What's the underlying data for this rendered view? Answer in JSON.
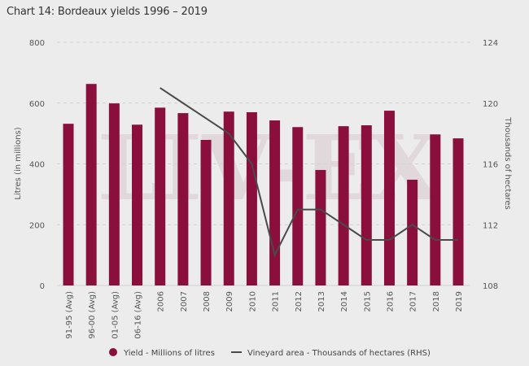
{
  "title": "Chart 14: Bordeaux yields 1996 – 2019",
  "watermark": "LIV-EX",
  "chart_data": {
    "type": "bar+line",
    "categories": [
      "91-95 (Avg)",
      "96-00 (Avg)",
      "01-05 (Avg)",
      "06-16 (Avg)",
      "2006",
      "2007",
      "2008",
      "2009",
      "2010",
      "2011",
      "2012",
      "2013",
      "2014",
      "2015",
      "2016",
      "2017",
      "2018",
      "2019"
    ],
    "series": [
      {
        "name": "Yield - Millions of litres",
        "type": "bar",
        "axis": "left",
        "color": "#8a0f3c",
        "values": [
          532,
          663,
          599,
          529,
          585,
          567,
          479,
          572,
          570,
          543,
          521,
          380,
          524,
          527,
          575,
          348,
          497,
          484
        ]
      },
      {
        "name": "Vineyard area - Thousands of hectares (RHS)",
        "type": "line",
        "axis": "right",
        "color": "#4a4a4a",
        "values": [
          null,
          null,
          null,
          null,
          121,
          120,
          119,
          118,
          116,
          110,
          113,
          113,
          112,
          111,
          111,
          112,
          111,
          111
        ]
      }
    ],
    "ylabel": "Litres (in millions)",
    "ylabel_right": "Thousands of hectares",
    "ylim": [
      0,
      800
    ],
    "yticks": [
      "0",
      "200",
      "400",
      "600",
      "800"
    ],
    "ylim_right": [
      108,
      124
    ],
    "yticks_right": [
      "108",
      "112",
      "116",
      "120",
      "124"
    ],
    "grid": true,
    "legend": "bottom"
  }
}
